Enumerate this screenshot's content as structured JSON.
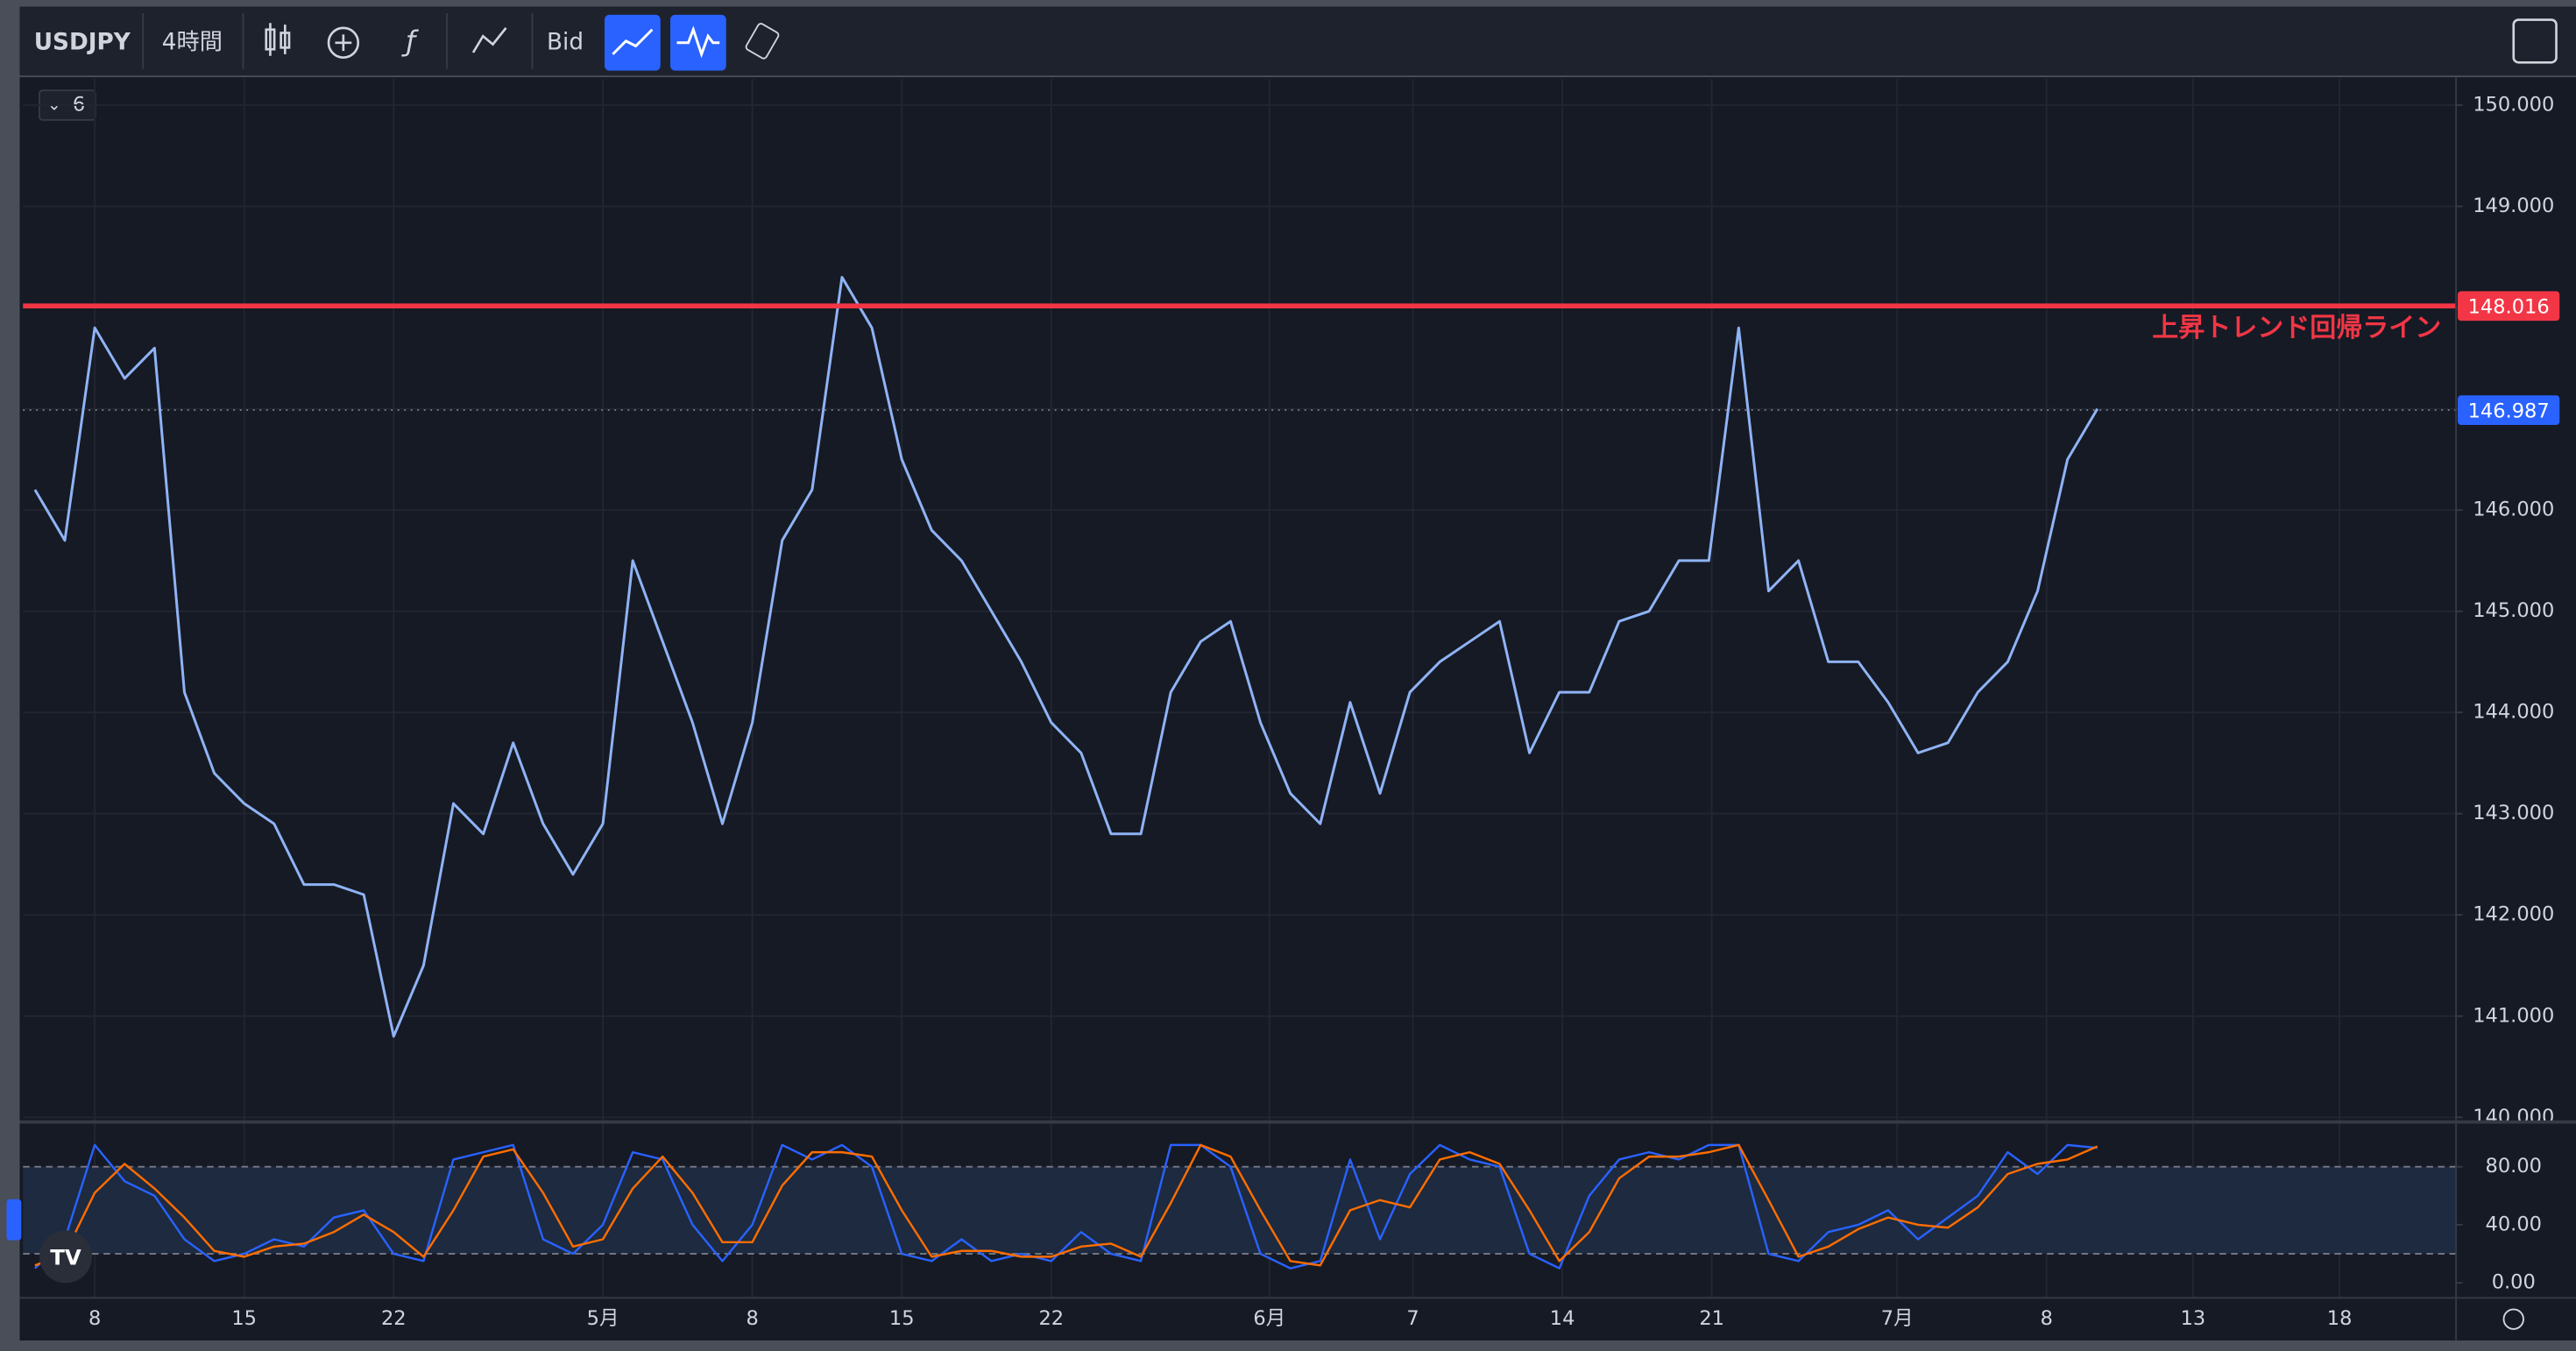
{
  "toolbar": {
    "symbol": "USDJPY",
    "interval": "4時間",
    "price_type": "Bid"
  },
  "indicator_toggle": "6",
  "chart_data": [
    {
      "type": "line",
      "x": [
        -2,
        -1,
        0,
        1,
        2,
        3,
        4,
        5,
        6,
        7,
        8,
        9,
        10,
        11,
        12,
        13,
        14,
        15,
        16,
        17,
        18,
        19,
        20,
        21,
        22,
        23,
        24,
        25,
        26,
        27,
        28,
        29,
        30,
        31,
        32,
        33,
        34,
        35,
        36,
        37,
        38,
        39,
        40,
        41,
        42,
        43,
        44,
        45,
        46,
        47,
        48,
        49,
        50,
        51,
        52,
        53,
        54,
        55,
        56,
        57,
        58,
        59,
        60,
        61,
        62,
        63,
        64,
        65,
        66,
        67
      ],
      "series": [
        {
          "color": "#8fb3f5",
          "values": [
            146.2,
            145.7,
            147.8,
            147.3,
            147.6,
            144.2,
            143.4,
            143.1,
            142.9,
            142.3,
            142.3,
            142.2,
            140.8,
            141.5,
            143.1,
            142.8,
            143.7,
            142.9,
            142.4,
            142.9,
            145.5,
            144.7,
            143.9,
            142.9,
            143.9,
            145.7,
            146.2,
            148.3,
            147.8,
            146.5,
            145.8,
            145.5,
            145.0,
            144.5,
            143.9,
            143.6,
            142.8,
            142.8,
            144.2,
            144.7,
            144.9,
            143.9,
            143.2,
            142.9,
            144.1,
            143.2,
            144.2,
            144.5,
            144.7,
            144.9,
            143.6,
            144.2,
            144.2,
            144.9,
            145.0,
            145.5,
            145.5,
            147.8,
            145.2,
            145.5,
            144.5,
            144.5,
            144.1,
            143.6,
            143.7,
            144.2,
            144.5,
            145.2,
            146.5,
            147.0
          ]
        }
      ],
      "xlim": [
        -2.4,
        79.0
      ],
      "xticks": [
        {
          "value": 0,
          "label": "8"
        },
        {
          "value": 5,
          "label": "15"
        },
        {
          "value": 10,
          "label": "22"
        },
        {
          "value": 17,
          "label": "5月"
        },
        {
          "value": 22,
          "label": "8"
        },
        {
          "value": 27,
          "label": "15"
        },
        {
          "value": 32,
          "label": "22"
        },
        {
          "value": 39.3,
          "label": "6月"
        },
        {
          "value": 44.1,
          "label": "7"
        },
        {
          "value": 49.1,
          "label": "14"
        },
        {
          "value": 54.1,
          "label": "21"
        },
        {
          "value": 60.3,
          "label": "7月"
        },
        {
          "value": 65.3,
          "label": "8"
        },
        {
          "value": 70.2,
          "label": "13"
        },
        {
          "value": 75.1,
          "label": "18"
        }
      ],
      "ylim": [
        139.97,
        150.26
      ],
      "yticks": [
        {
          "value": 140,
          "label": "140.000"
        },
        {
          "value": 141,
          "label": "141.000"
        },
        {
          "value": 142,
          "label": "142.000"
        },
        {
          "value": 143,
          "label": "143.000"
        },
        {
          "value": 144,
          "label": "144.000"
        },
        {
          "value": 145,
          "label": "145.000"
        },
        {
          "value": 146,
          "label": "146.000"
        },
        {
          "value": 147,
          "label": "147.000"
        },
        {
          "value": 148,
          "label": "148.000"
        },
        {
          "value": 149,
          "label": "149.000"
        },
        {
          "value": 150,
          "label": "150.000"
        }
      ],
      "grid": true,
      "hline": {
        "value": 148.016,
        "label": "上昇トレンド回帰ライン",
        "color": "#f23645"
      },
      "last_price": {
        "value": 146.987,
        "color": "#2962ff"
      }
    },
    {
      "type": "line",
      "x": [
        -2,
        -1,
        0,
        1,
        2,
        3,
        4,
        5,
        6,
        7,
        8,
        9,
        10,
        11,
        12,
        13,
        14,
        15,
        16,
        17,
        18,
        19,
        20,
        21,
        22,
        23,
        24,
        25,
        26,
        27,
        28,
        29,
        30,
        31,
        32,
        33,
        34,
        35,
        36,
        37,
        38,
        39,
        40,
        41,
        42,
        43,
        44,
        45,
        46,
        47,
        48,
        49,
        50,
        51,
        52,
        53,
        54,
        55,
        56,
        57,
        58,
        59,
        60,
        61,
        62,
        63,
        64,
        65,
        66,
        67
      ],
      "series": [
        {
          "color": "#2962ff",
          "values": [
            10,
            30,
            95,
            70,
            60,
            30,
            15,
            20,
            30,
            25,
            45,
            50,
            20,
            15,
            85,
            90,
            95,
            30,
            20,
            40,
            90,
            85,
            40,
            15,
            40,
            95,
            85,
            95,
            80,
            20,
            15,
            30,
            15,
            20,
            15,
            35,
            20,
            15,
            95,
            95,
            80,
            20,
            10,
            15,
            85,
            30,
            75,
            95,
            85,
            80,
            20,
            10,
            60,
            85,
            90,
            85,
            95,
            95,
            20,
            15,
            35,
            40,
            50,
            30,
            45,
            60,
            90,
            75,
            95,
            93
          ]
        },
        {
          "color": "#ff6d00",
          "values": [
            12,
            20,
            62,
            82,
            65,
            45,
            22,
            18,
            25,
            27,
            35,
            47,
            35,
            18,
            50,
            87,
            92,
            62,
            25,
            30,
            65,
            87,
            62,
            28,
            28,
            67,
            90,
            90,
            87,
            50,
            18,
            22,
            22,
            18,
            18,
            25,
            27,
            18,
            55,
            95,
            87,
            50,
            15,
            12,
            50,
            57,
            52,
            85,
            90,
            82,
            50,
            15,
            35,
            72,
            87,
            87,
            90,
            95,
            57,
            18,
            25,
            37,
            45,
            40,
            38,
            52,
            75,
            82,
            85,
            94
          ]
        }
      ],
      "xlim": [
        -2.4,
        79.0
      ],
      "ylim": [
        -10.3,
        109.7
      ],
      "yticks": [
        {
          "value": 0,
          "label": "0.00"
        },
        {
          "value": 40,
          "label": "40.00"
        },
        {
          "value": 80,
          "label": "80.00"
        }
      ],
      "bands": [
        20,
        80
      ],
      "grid": true
    }
  ]
}
